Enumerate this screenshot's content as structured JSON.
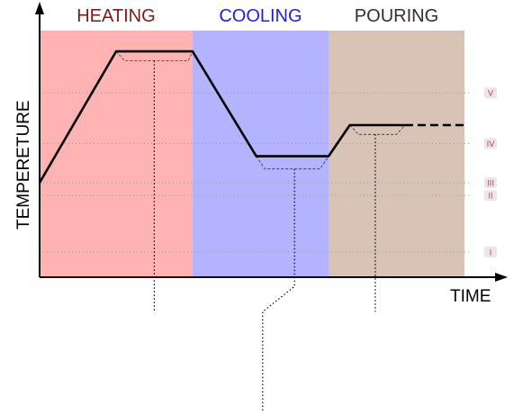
{
  "chart_data": {
    "type": "line",
    "title": "",
    "xlabel": "TIME",
    "ylabel": "TEMPERETURE",
    "xlim": [
      0,
      100
    ],
    "ylim": [
      0,
      100
    ],
    "grid": false,
    "phases": [
      {
        "name": "HEATING",
        "start": 0,
        "end": 36,
        "color": "#ffb3b3",
        "label_color": "#7a1a1a"
      },
      {
        "name": "COOLING",
        "start": 36,
        "end": 68,
        "color": "#b3b3ff",
        "label_color": "#1f1fd6"
      },
      {
        "name": "POURING",
        "start": 68,
        "end": 100,
        "color": "#d9c3b6",
        "label_color": "#3a2a2a"
      }
    ],
    "levels": [
      {
        "label": "V",
        "y": 80
      },
      {
        "label": "IV",
        "y": 58
      },
      {
        "label": "III",
        "y": 41
      },
      {
        "label": "II",
        "y": 35.5
      },
      {
        "label": "I",
        "y": 11
      }
    ],
    "series": [
      {
        "values_solid": [
          [
            0,
            41
          ],
          [
            18,
            98
          ],
          [
            36,
            98
          ],
          [
            51,
            52.5
          ],
          [
            68,
            52.5
          ],
          [
            73,
            66
          ],
          [
            86,
            66
          ]
        ],
        "values_dashed": [
          [
            86,
            66
          ],
          [
            100,
            66
          ]
        ],
        "color": "#000000"
      }
    ],
    "tolerance_bands": [
      {
        "points": [
          [
            18,
            98
          ],
          [
            20,
            94
          ],
          [
            35,
            94
          ],
          [
            36,
            98
          ]
        ]
      },
      {
        "points": [
          [
            51,
            52.5
          ],
          [
            53,
            47
          ],
          [
            66,
            47
          ],
          [
            68,
            52.5
          ]
        ]
      },
      {
        "points": [
          [
            73,
            66
          ],
          [
            75,
            62
          ],
          [
            84,
            62
          ],
          [
            86,
            66
          ]
        ]
      }
    ],
    "leaders": [
      {
        "points": [
          [
            27,
            94
          ],
          [
            27,
            -15
          ]
        ]
      },
      {
        "points": [
          [
            60,
            47
          ],
          [
            60,
            -4
          ],
          [
            52.5,
            -15
          ],
          [
            52.5,
            -58
          ]
        ]
      },
      {
        "points": [
          [
            79,
            62
          ],
          [
            79,
            -15
          ]
        ]
      }
    ]
  },
  "colors": {
    "line": "#000000",
    "level_line": "#999999"
  }
}
